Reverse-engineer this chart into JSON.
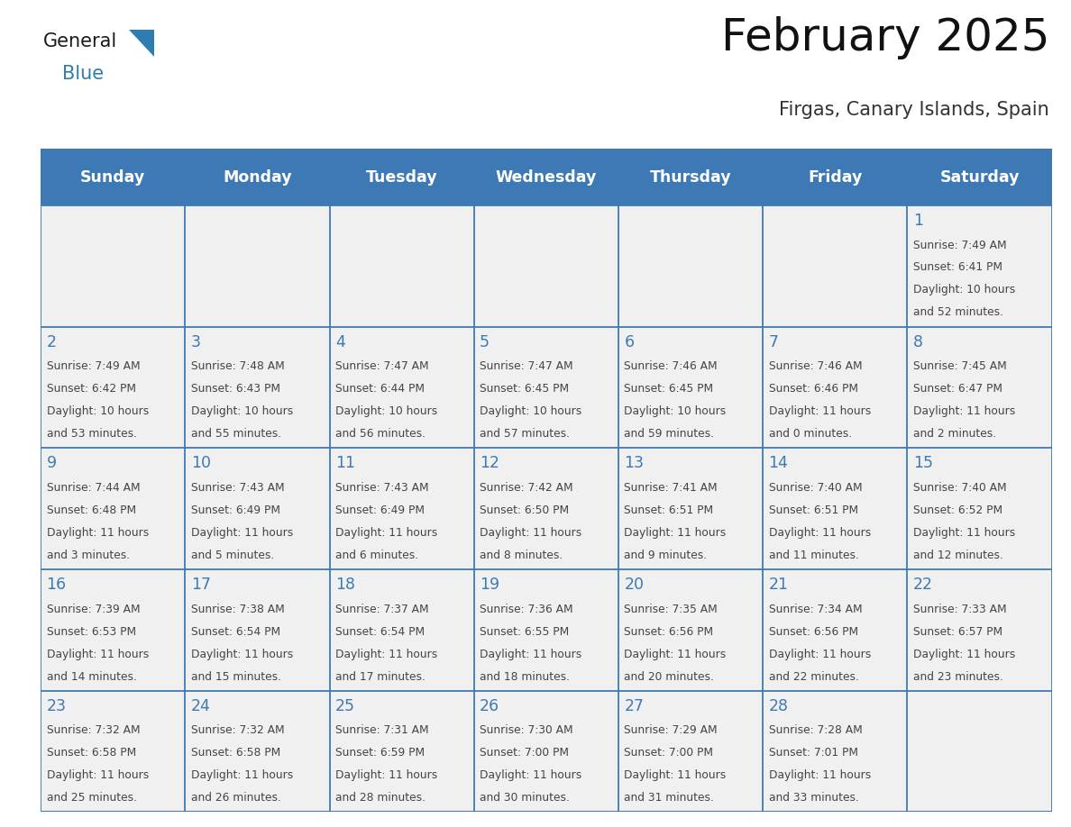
{
  "title": "February 2025",
  "subtitle": "Firgas, Canary Islands, Spain",
  "header_bg": "#3d7ab5",
  "header_text_color": "#ffffff",
  "cell_bg": "#f0f0f0",
  "day_names": [
    "Sunday",
    "Monday",
    "Tuesday",
    "Wednesday",
    "Thursday",
    "Friday",
    "Saturday"
  ],
  "grid_color": "#3d7ab5",
  "day_number_color": "#3d7ab5",
  "cell_text_color": "#444444",
  "days": [
    {
      "day": 1,
      "col": 6,
      "row": 0,
      "sunrise": "7:49 AM",
      "sunset": "6:41 PM",
      "daylight_l1": "Daylight: 10 hours",
      "daylight_l2": "and 52 minutes."
    },
    {
      "day": 2,
      "col": 0,
      "row": 1,
      "sunrise": "7:49 AM",
      "sunset": "6:42 PM",
      "daylight_l1": "Daylight: 10 hours",
      "daylight_l2": "and 53 minutes."
    },
    {
      "day": 3,
      "col": 1,
      "row": 1,
      "sunrise": "7:48 AM",
      "sunset": "6:43 PM",
      "daylight_l1": "Daylight: 10 hours",
      "daylight_l2": "and 55 minutes."
    },
    {
      "day": 4,
      "col": 2,
      "row": 1,
      "sunrise": "7:47 AM",
      "sunset": "6:44 PM",
      "daylight_l1": "Daylight: 10 hours",
      "daylight_l2": "and 56 minutes."
    },
    {
      "day": 5,
      "col": 3,
      "row": 1,
      "sunrise": "7:47 AM",
      "sunset": "6:45 PM",
      "daylight_l1": "Daylight: 10 hours",
      "daylight_l2": "and 57 minutes."
    },
    {
      "day": 6,
      "col": 4,
      "row": 1,
      "sunrise": "7:46 AM",
      "sunset": "6:45 PM",
      "daylight_l1": "Daylight: 10 hours",
      "daylight_l2": "and 59 minutes."
    },
    {
      "day": 7,
      "col": 5,
      "row": 1,
      "sunrise": "7:46 AM",
      "sunset": "6:46 PM",
      "daylight_l1": "Daylight: 11 hours",
      "daylight_l2": "and 0 minutes."
    },
    {
      "day": 8,
      "col": 6,
      "row": 1,
      "sunrise": "7:45 AM",
      "sunset": "6:47 PM",
      "daylight_l1": "Daylight: 11 hours",
      "daylight_l2": "and 2 minutes."
    },
    {
      "day": 9,
      "col": 0,
      "row": 2,
      "sunrise": "7:44 AM",
      "sunset": "6:48 PM",
      "daylight_l1": "Daylight: 11 hours",
      "daylight_l2": "and 3 minutes."
    },
    {
      "day": 10,
      "col": 1,
      "row": 2,
      "sunrise": "7:43 AM",
      "sunset": "6:49 PM",
      "daylight_l1": "Daylight: 11 hours",
      "daylight_l2": "and 5 minutes."
    },
    {
      "day": 11,
      "col": 2,
      "row": 2,
      "sunrise": "7:43 AM",
      "sunset": "6:49 PM",
      "daylight_l1": "Daylight: 11 hours",
      "daylight_l2": "and 6 minutes."
    },
    {
      "day": 12,
      "col": 3,
      "row": 2,
      "sunrise": "7:42 AM",
      "sunset": "6:50 PM",
      "daylight_l1": "Daylight: 11 hours",
      "daylight_l2": "and 8 minutes."
    },
    {
      "day": 13,
      "col": 4,
      "row": 2,
      "sunrise": "7:41 AM",
      "sunset": "6:51 PM",
      "daylight_l1": "Daylight: 11 hours",
      "daylight_l2": "and 9 minutes."
    },
    {
      "day": 14,
      "col": 5,
      "row": 2,
      "sunrise": "7:40 AM",
      "sunset": "6:51 PM",
      "daylight_l1": "Daylight: 11 hours",
      "daylight_l2": "and 11 minutes."
    },
    {
      "day": 15,
      "col": 6,
      "row": 2,
      "sunrise": "7:40 AM",
      "sunset": "6:52 PM",
      "daylight_l1": "Daylight: 11 hours",
      "daylight_l2": "and 12 minutes."
    },
    {
      "day": 16,
      "col": 0,
      "row": 3,
      "sunrise": "7:39 AM",
      "sunset": "6:53 PM",
      "daylight_l1": "Daylight: 11 hours",
      "daylight_l2": "and 14 minutes."
    },
    {
      "day": 17,
      "col": 1,
      "row": 3,
      "sunrise": "7:38 AM",
      "sunset": "6:54 PM",
      "daylight_l1": "Daylight: 11 hours",
      "daylight_l2": "and 15 minutes."
    },
    {
      "day": 18,
      "col": 2,
      "row": 3,
      "sunrise": "7:37 AM",
      "sunset": "6:54 PM",
      "daylight_l1": "Daylight: 11 hours",
      "daylight_l2": "and 17 minutes."
    },
    {
      "day": 19,
      "col": 3,
      "row": 3,
      "sunrise": "7:36 AM",
      "sunset": "6:55 PM",
      "daylight_l1": "Daylight: 11 hours",
      "daylight_l2": "and 18 minutes."
    },
    {
      "day": 20,
      "col": 4,
      "row": 3,
      "sunrise": "7:35 AM",
      "sunset": "6:56 PM",
      "daylight_l1": "Daylight: 11 hours",
      "daylight_l2": "and 20 minutes."
    },
    {
      "day": 21,
      "col": 5,
      "row": 3,
      "sunrise": "7:34 AM",
      "sunset": "6:56 PM",
      "daylight_l1": "Daylight: 11 hours",
      "daylight_l2": "and 22 minutes."
    },
    {
      "day": 22,
      "col": 6,
      "row": 3,
      "sunrise": "7:33 AM",
      "sunset": "6:57 PM",
      "daylight_l1": "Daylight: 11 hours",
      "daylight_l2": "and 23 minutes."
    },
    {
      "day": 23,
      "col": 0,
      "row": 4,
      "sunrise": "7:32 AM",
      "sunset": "6:58 PM",
      "daylight_l1": "Daylight: 11 hours",
      "daylight_l2": "and 25 minutes."
    },
    {
      "day": 24,
      "col": 1,
      "row": 4,
      "sunrise": "7:32 AM",
      "sunset": "6:58 PM",
      "daylight_l1": "Daylight: 11 hours",
      "daylight_l2": "and 26 minutes."
    },
    {
      "day": 25,
      "col": 2,
      "row": 4,
      "sunrise": "7:31 AM",
      "sunset": "6:59 PM",
      "daylight_l1": "Daylight: 11 hours",
      "daylight_l2": "and 28 minutes."
    },
    {
      "day": 26,
      "col": 3,
      "row": 4,
      "sunrise": "7:30 AM",
      "sunset": "7:00 PM",
      "daylight_l1": "Daylight: 11 hours",
      "daylight_l2": "and 30 minutes."
    },
    {
      "day": 27,
      "col": 4,
      "row": 4,
      "sunrise": "7:29 AM",
      "sunset": "7:00 PM",
      "daylight_l1": "Daylight: 11 hours",
      "daylight_l2": "and 31 minutes."
    },
    {
      "day": 28,
      "col": 5,
      "row": 4,
      "sunrise": "7:28 AM",
      "sunset": "7:01 PM",
      "daylight_l1": "Daylight: 11 hours",
      "daylight_l2": "and 33 minutes."
    }
  ],
  "logo_general_color": "#1a1a1a",
  "logo_blue_color": "#2d7db3",
  "logo_triangle_color": "#2d7db3",
  "fig_width": 11.88,
  "fig_height": 9.18,
  "dpi": 100
}
